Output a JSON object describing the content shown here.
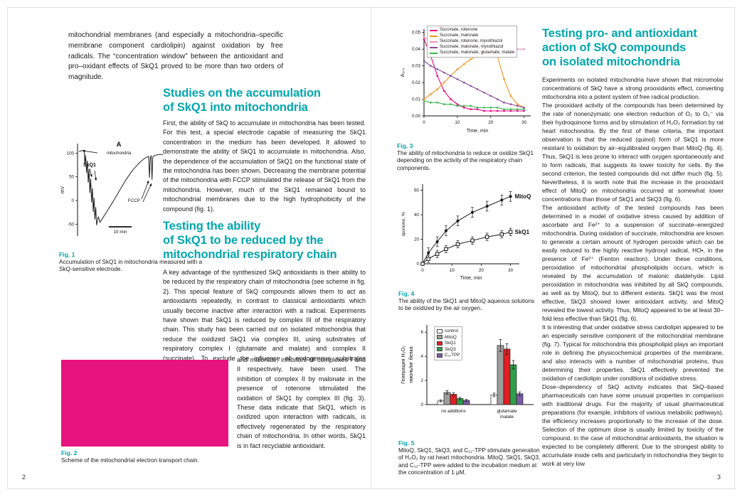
{
  "colors": {
    "accent": "#00a6ae",
    "magenta": "#e7137e",
    "text": "#1a1a1a"
  },
  "left_page": {
    "page_number": "2",
    "intro": "mitochondrial membranes (and especially a mitochondria–specific membrane component cardiolipin) against oxidation by free radicals. The “concentration window” between the antioxidant and pro–oxidant effects of SkQ1 proved to be more than two orders of magnitude.",
    "section1_title": "Studies on the accumulation\nof SkQ1 into mitochondria",
    "section1_body": "First, the ability of SkQ to accumulate in mitochondria has been tested. For this test, a special electrode capable of measuring the SkQ1 concentration in the medium has been developed. It allowed to demonstrate the ability of SkQ1 to accumulate in mitochondria. Also, the dependence of the accumulation of SkQ1 on the functional state of the mitochondria has been shown. Decreasing the membrane potential of the mitochondria with FCCP stimulated the release of SkQ1 from the mitochondria. However, much of the SkQ1 remained bound to mitochondrial membranes due to the high hydrophobicity of the compound (fig. 1).",
    "section2_title": "Testing the ability\nof SkQ1 to be reduced by the\nmitochondrial respiratory chain",
    "section2_body_a": "A key advantage of the synthesized SkQ antioxidants is their ability to be reduced by the respiratory chain of mitochondria (see scheme in fig. 2). This special feature of SkQ compounds allows them to act as antioxidants repeatedly, in contrast to classical antioxidants which usually become inactive after interaction with a radical. Experiments have shown that SkQ1 is reduced by complex III of the respiratory chain. This study has been carried out on isolated mitochondria that reduce the oxidized SkQ1 via complex III, using substrates of respiratory complex I (glutamate and malate) and complex II (succinate). To exclude the influence of endogenous substrates rotenone",
    "section2_body_b": "and malonate, inhibitors of complexes I and II respectively, have been used. The inhibition of complex II by malonate in the presence of rotenone stimulated the oxidation of SkQ1 by complex III (fig. 3). These data indicate that SkQ1, which is oxidized upon interaction with radicals, is effectively regenerated by the respiratory chain of mitochondria. In other words, SkQ1 is in fact recyclable antioxidant.",
    "fig1_label": "Fig. 1",
    "fig1_caption": "Accumulation of SkQ1 in mitochondria measured with a SkQ-sensitive electrode.",
    "fig2_label": "Fig. 2",
    "fig2_caption": "Scheme of the mitochondrial electron transport chain."
  },
  "right_page": {
    "page_number": "3",
    "section_title": "Testing pro- and antioxidant\naction of SkQ compounds\non isolated mitochondria",
    "paragraphs": [
      "Experiments on isolated mitochondria have shown that micromolar concentrations of SkQ have a strong prooxidants effect, converting mitochondria into a potent system of free radical production.",
      "The prooxidant activity of the compounds has been determined by the rate of nonenzymatic one electron reduction of O₂ to O₂⁻ via their hydroquinone forms and by stimulation of H₂O₂ formation by rat heart mitochondria. By the first of these criteria, the important observation is that the reduced (quinol) form of SkQ1 is more resistant to oxidation by air–equilibrated oxygen than MitoQ (fig. 4). Thus, SkQ1 is less prone to interact with oxygen spontaneously and to form radicals, that suggests its lower toxicity for cells. By the second criterion, the tested compounds did not differ much (fig. 5). Nevertheless, it is worth note that the increase in the prooxidant effect of MitoQ on mitochondria occurred at somewhat lower concentrations than those of SkQ1 and SkQ3 (fig. 6).",
      "The antioxidant activity of the tested compounds has been determined in a model of oxidative stress caused by addition of ascorbate and Fe²⁺ to a suspension of succinate–energized mitochondria. During oxidation of succinate, mitochondria are known to generate a certain amount of hydrogen peroxide which can be easily reduced to the highly reactive hydroxyl radical, HO•, in the presence of Fe²⁺ (Fenton reaction). Under these conditions, peroxidation of mitochondrial phospholipids occurs, which is revealed by the accumulation of malonic dialdehyde. Lipid peroxidation in mitochondria was inhibited by all SkQ compounds, as well as by MitoQ, but to different extents. SkQ1 was the most effective, SkQ3 showed lower antioxidant activity, and MitoQ revealed the lowest activity. Thus, MitoQ appeared to be at least 30–fold less effective than SkQ1 (fig. 6).",
      "It is interesting that under oxidative stress cardiolipin appeared to be an especially sensitive component of the mitochondrial membrane (fig. 7). Typical for mitochondria this phospholipid plays an important role in defining the physicochemical properties of the membrane, and also interacts with a number of mitochondrial proteins, thus determining their properties. SkQ1 effectively prevented the oxidation of cardiolipin under conditions of oxidative stress.",
      "Dose–dependency of SkQ activity indicates that SkQ–based pharmaceuticals can have some unusual properties in comparison with traditional drugs. For the majority of usual pharmaceutical preparations (for example, inhibitors of various metabolic pathways), the efficiency increases proportionally to the increase of the dose. Selection of the optimum dose is usually limited by toxicity of the compound. In the case of mitochondrial antioxidants, the situation is expected to be completely different. Due to the strongest ability to accumulate inside cells and particularly in mitochondria they begin to work at very low"
    ],
    "fig3_label": "Fig. 3",
    "fig3_caption": "The ability of mitochondria to reduce or oxidize SkQ1 depending on the activity of the respiratory chain components.",
    "fig4_label": "Fig. 4",
    "fig4_caption": "The ability of the SkQ1 and MitoQ aqueous solutions to be oxidized by the air oxygen.",
    "fig5_label": "Fig. 5",
    "fig5_caption": "MitoQ, SkQ1, SkQ3, and C₁₂-TPP stimulate generation of H₂O₂ by rat heart mitochondria. MitoQ, SkQ1, SkQ3, and C₁₂-TPP were added to the incubation medium at the concentration of 1 μM."
  },
  "chart_data": [
    {
      "id": "fig1",
      "type": "line",
      "title": "Accumulation of SkQ1 in mitochondria (SkQ-sensitive electrode trace)",
      "ylabel": "mV",
      "yticks": [
        100,
        50,
        0,
        -50
      ],
      "ylim": [
        -75,
        120
      ],
      "xlim": [
        0,
        100
      ],
      "panel_label": "A",
      "labels": {
        "top": "mitochondria",
        "skq": "SkQ1",
        "fccp": "FCCP",
        "scalebar": "10 min"
      },
      "trace": [
        [
          0,
          104
        ],
        [
          6,
          106
        ],
        [
          7,
          76
        ],
        [
          8,
          96
        ],
        [
          9,
          58
        ],
        [
          10,
          84
        ],
        [
          11,
          38
        ],
        [
          12,
          66
        ],
        [
          13,
          16
        ],
        [
          14,
          46
        ],
        [
          15,
          -4
        ],
        [
          16,
          26
        ],
        [
          17,
          -24
        ],
        [
          18,
          6
        ],
        [
          19,
          -40
        ],
        [
          20,
          -14
        ],
        [
          21,
          -52
        ],
        [
          23,
          -34
        ],
        [
          25,
          -46
        ],
        [
          28,
          -38
        ],
        [
          33,
          -24
        ],
        [
          40,
          -4
        ],
        [
          48,
          20
        ],
        [
          56,
          44
        ],
        [
          64,
          64
        ],
        [
          72,
          80
        ],
        [
          79,
          90
        ],
        [
          83,
          93
        ],
        [
          84,
          48
        ],
        [
          85,
          91
        ],
        [
          86,
          94
        ],
        [
          87,
          44
        ],
        [
          88,
          92
        ],
        [
          90,
          95
        ],
        [
          95,
          97
        ],
        [
          100,
          97
        ]
      ]
    },
    {
      "id": "fig3",
      "type": "line",
      "xlabel": "Time, min",
      "ylabel": "A₂₇₄",
      "xlim": [
        0,
        32
      ],
      "ylim": [
        0,
        0.052
      ],
      "xticks": [
        0,
        10,
        20,
        30
      ],
      "yticks": [
        0,
        0.01,
        0.02,
        0.03,
        0.04,
        0.05
      ],
      "legend_position": "top-left",
      "x": [
        0,
        2,
        4,
        6,
        8,
        10,
        12,
        14,
        16,
        18,
        20,
        22,
        24,
        26,
        28,
        30
      ],
      "series": [
        {
          "name": "Succinate, rotenone",
          "color": "#e6007e",
          "values": [
            0.046,
            0.036,
            0.024,
            0.015,
            0.01,
            0.007,
            0.005,
            0.004,
            0.004,
            0.003,
            0.003,
            0.003,
            0.003,
            0.003,
            0.003,
            0.003
          ]
        },
        {
          "name": "Succinate, malonate",
          "color": "#f7941d",
          "values": [
            0.01,
            0.013,
            0.016,
            0.02,
            0.024,
            0.028,
            0.031,
            0.034,
            0.036,
            0.038,
            0.04,
            0.036,
            0.022,
            0.012,
            0.007,
            0.005
          ]
        },
        {
          "name": "Succinate, rotenone, myxothiazol",
          "color": "#f291bc",
          "values": [
            0.047,
            0.046,
            0.046,
            0.045,
            0.045,
            0.044,
            0.044,
            0.043,
            0.043,
            0.042,
            0.042,
            0.041,
            0.041,
            0.04,
            0.04,
            0.04
          ]
        },
        {
          "name": "Succinate, malonate, myxothiazol",
          "color": "#8a4a9e",
          "values": [
            0.033,
            0.03,
            0.028,
            0.026,
            0.024,
            0.022,
            0.02,
            0.018,
            0.016,
            0.014,
            0.012,
            0.01,
            0.008,
            0.007,
            0.006,
            0.005
          ]
        },
        {
          "name": "Succinate, malonate, glutamate, malate",
          "color": "#3bb54a",
          "values": [
            0.009,
            0.008,
            0.008,
            0.007,
            0.007,
            0.006,
            0.006,
            0.006,
            0.005,
            0.005,
            0.005,
            0.005,
            0.004,
            0.004,
            0.004,
            0.004
          ]
        }
      ]
    },
    {
      "id": "fig4",
      "type": "scatter-line",
      "xlabel": "Time, min",
      "ylabel": "quinone, %",
      "xlim": [
        0,
        33
      ],
      "ylim": [
        0,
        65
      ],
      "xticks": [
        0,
        10,
        20,
        30
      ],
      "yticks": [
        0,
        20,
        40,
        60
      ],
      "x": [
        0,
        2,
        5,
        8,
        12,
        17,
        22,
        27,
        30
      ],
      "series": [
        {
          "name": "MitoQ",
          "color": "#1a1a1a",
          "marker": "circle",
          "error": 4,
          "values": [
            0,
            9,
            18,
            27,
            35,
            42,
            47,
            52,
            55
          ]
        },
        {
          "name": "SkQ1",
          "color": "#1a1a1a",
          "marker": "square",
          "error": 3,
          "values": [
            0,
            4,
            8,
            12,
            16,
            19,
            22,
            24,
            26
          ]
        }
      ]
    },
    {
      "id": "fig5",
      "type": "bar",
      "ylabel_lines": [
        "Генерация H₂O₂",
        "нмоль/мг белка"
      ],
      "ylim": [
        0,
        6.6
      ],
      "yticks": [
        0,
        2,
        4,
        6
      ],
      "categories": [
        [
          "no additions"
        ],
        [
          "glutamate",
          "malate"
        ]
      ],
      "series": [
        {
          "name": "control",
          "color": "#ffffff",
          "values": [
            0.3,
            0.8
          ],
          "errors": [
            0.08,
            0.15
          ]
        },
        {
          "name": "MitoQ",
          "color": "#9c9c9c",
          "values": [
            1.0,
            4.9
          ],
          "errors": [
            0.15,
            0.5
          ]
        },
        {
          "name": "SkQ1",
          "color": "#e31e24",
          "values": [
            0.85,
            4.6
          ],
          "errors": [
            0.12,
            0.45
          ]
        },
        {
          "name": "SkQ3",
          "color": "#2f9e48",
          "values": [
            0.5,
            3.3
          ],
          "errors": [
            0.1,
            0.35
          ]
        },
        {
          "name": "C₁₂TPP",
          "color": "#7a5ba6",
          "values": [
            0.35,
            0.9
          ],
          "errors": [
            0.08,
            0.15
          ]
        }
      ]
    }
  ]
}
